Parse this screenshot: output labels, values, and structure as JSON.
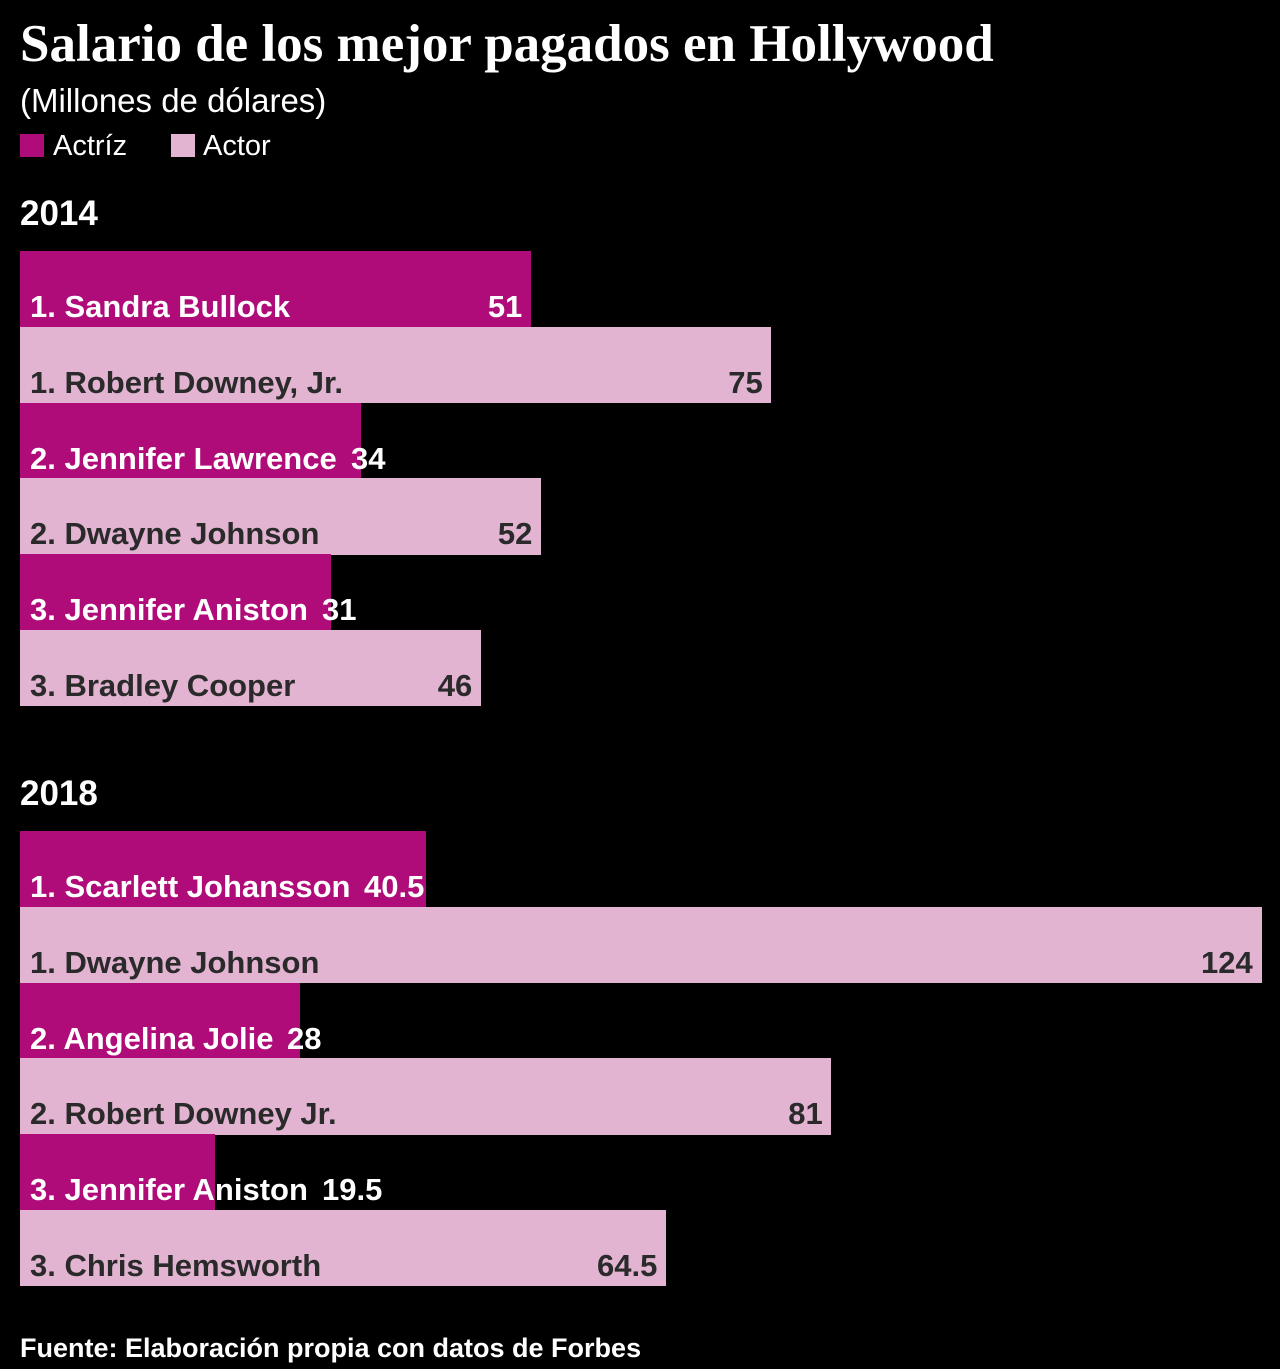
{
  "title": "Salario de los mejor pagados en Hollywood",
  "subtitle": "(Millones de dólares)",
  "legend": {
    "position": "top-left",
    "items": [
      {
        "label": "Actríz",
        "color": "#AF0B79"
      },
      {
        "label": "Actor",
        "color": "#E2B4D2"
      }
    ]
  },
  "source": "Fuente: Elaboración propia con datos de Forbes",
  "colors": {
    "background": "#000000",
    "light_text": "#FFFFFF",
    "dark_text": "#2A2A2A"
  },
  "chart_data": [
    {
      "type": "bar",
      "orientation": "horizontal",
      "title": "2014",
      "xlim": [
        0,
        124
      ],
      "grid": false,
      "series": [
        {
          "name": "Actríz",
          "color": "#AF0B79",
          "labels": [
            "1. Sandra Bullock",
            "2. Jennifer Lawrence",
            "3. Jennifer Aniston"
          ],
          "values": [
            51,
            34,
            31
          ]
        },
        {
          "name": "Actor",
          "color": "#E2B4D2",
          "labels": [
            "1. Robert Downey, Jr.",
            "2. Dwayne Johnson",
            "3. Bradley Cooper"
          ],
          "values": [
            75,
            52,
            46
          ]
        }
      ]
    },
    {
      "type": "bar",
      "orientation": "horizontal",
      "title": "2018",
      "xlim": [
        0,
        124
      ],
      "grid": false,
      "series": [
        {
          "name": "Actríz",
          "color": "#AF0B79",
          "labels": [
            "1. Scarlett Johansson",
            "2. Angelina Jolie",
            "3. Jennifer Aniston"
          ],
          "values": [
            40.5,
            28,
            19.5
          ]
        },
        {
          "name": "Actor",
          "color": "#E2B4D2",
          "labels": [
            "1. Dwayne Johnson",
            "2. Robert Downey Jr.",
            "3. Chris Hemsworth"
          ],
          "values": [
            124,
            81,
            64.5
          ]
        }
      ]
    }
  ]
}
